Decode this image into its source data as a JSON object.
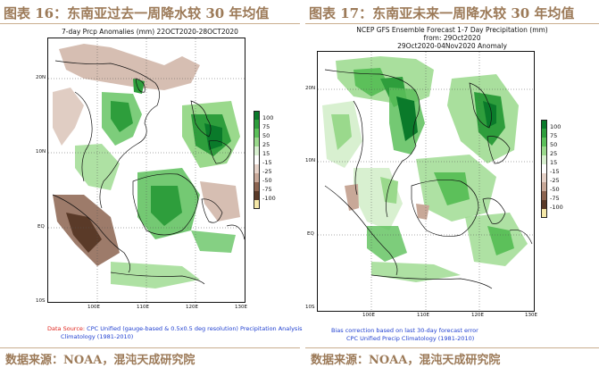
{
  "left": {
    "figure_title": "图表 16：东南亚过去一周降水较 30 年均值",
    "map_title": "7-day Prcp Anomalies (mm) 22OCT2020-28OCT2020",
    "lat_labels": [
      "20N",
      "10N",
      "EQ",
      "10S"
    ],
    "lon_labels": [
      "100E",
      "110E",
      "120E",
      "130E"
    ],
    "legend": [
      {
        "label": "100",
        "color": "#0a7a2a"
      },
      {
        "label": "75",
        "color": "#2e9e3c"
      },
      {
        "label": "50",
        "color": "#5cc05a"
      },
      {
        "label": "25",
        "color": "#9ad98c"
      },
      {
        "label": "15",
        "color": "#d8f0d0"
      },
      {
        "label": "-15",
        "color": "#ffffff"
      },
      {
        "label": "-25",
        "color": "#e6d2c8"
      },
      {
        "label": "-50",
        "color": "#c8a898"
      },
      {
        "label": "-75",
        "color": "#8c6450"
      },
      {
        "label": "-100",
        "color": "#5a3a28"
      },
      {
        "label": "",
        "color": "#f5e8a8"
      }
    ],
    "note_prefix": "Data Source:",
    "note_line1": " CPC Unified (gauge-based & 0.5x0.5 deg resolution) Precipitation Analysis",
    "note_line2": "Climatology (1981-2010)",
    "source": "数据来源：NOAA，混沌天成研究院"
  },
  "right": {
    "figure_title": "图表 17：东南亚未来一周降水较 30 年均值",
    "map_title_lines": [
      "NCEP GFS Ensemble Forecast 1-7 Day Precipitation (mm)",
      "from: 29Oct2020",
      "29Oct2020-04Nov2020 Anomaly"
    ],
    "lat_labels": [
      "20N",
      "10N",
      "EQ",
      "10S"
    ],
    "lon_labels": [
      "100E",
      "110E",
      "120E",
      "130E"
    ],
    "legend": [
      {
        "label": "100",
        "color": "#0a7a2a"
      },
      {
        "label": "75",
        "color": "#2e9e3c"
      },
      {
        "label": "50",
        "color": "#5cc05a"
      },
      {
        "label": "25",
        "color": "#9ad98c"
      },
      {
        "label": "15",
        "color": "#d8f0d0"
      },
      {
        "label": "-15",
        "color": "#ffffff"
      },
      {
        "label": "-25",
        "color": "#e6d2c8"
      },
      {
        "label": "-50",
        "color": "#c8a898"
      },
      {
        "label": "-75",
        "color": "#8c6450"
      },
      {
        "label": "-100",
        "color": "#5a3a28"
      },
      {
        "label": "",
        "color": "#f5e8a8"
      }
    ],
    "note_lines": [
      "Bias correction based on last 30-day forecast error",
      "CPC Unified Precip Climatology (1981-2010)"
    ],
    "source": "数据来源：NOAA，混沌天成研究院"
  },
  "colors": {
    "title_text": "#9c7a58",
    "rule": "#c9ad8e",
    "note_red": "#e0261e",
    "note_blue": "#1f3fd0"
  }
}
